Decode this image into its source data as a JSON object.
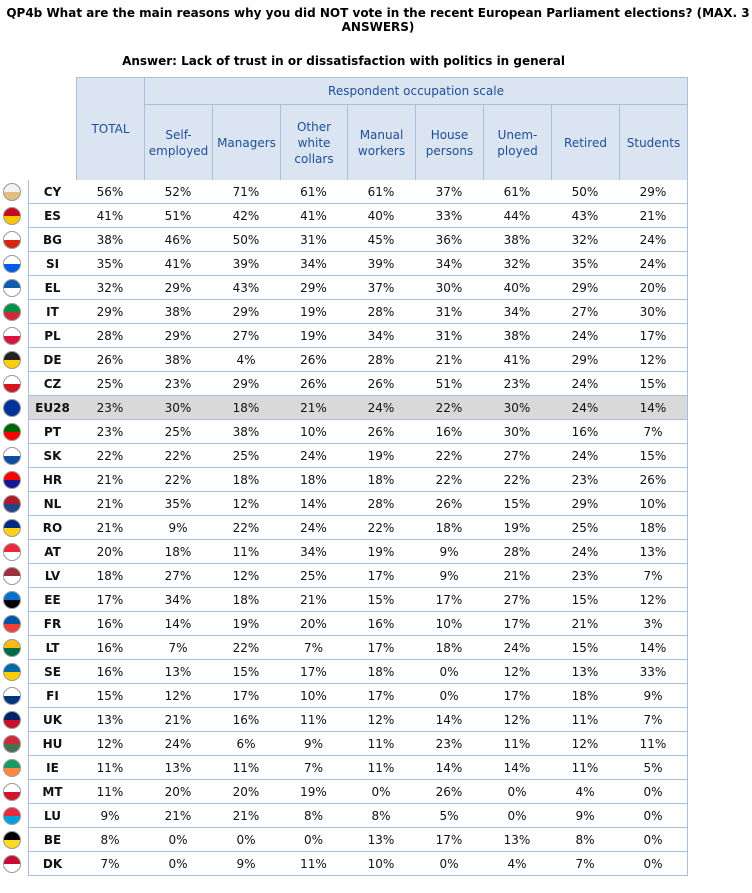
{
  "title": "QP4b What are the main reasons why you did NOT vote in the recent European Parliament elections? (MAX. 3 ANSWERS)",
  "subtitle": "Answer: Lack of trust in or dissatisfaction with politics in general",
  "group_header": "Respondent occupation scale",
  "columns": [
    "TOTAL",
    "Self-\nemployed",
    "Managers",
    "Other white\ncollars",
    "Manual\nworkers",
    "House\npersons",
    "Unem-\nployed",
    "Retired",
    "Students"
  ],
  "rows": [
    {
      "country": "CY",
      "values": [
        "56%",
        "52%",
        "71%",
        "61%",
        "61%",
        "37%",
        "61%",
        "50%",
        "29%"
      ]
    },
    {
      "country": "ES",
      "values": [
        "41%",
        "51%",
        "42%",
        "41%",
        "40%",
        "33%",
        "44%",
        "43%",
        "21%"
      ]
    },
    {
      "country": "BG",
      "values": [
        "38%",
        "46%",
        "50%",
        "31%",
        "45%",
        "36%",
        "38%",
        "32%",
        "24%"
      ]
    },
    {
      "country": "SI",
      "values": [
        "35%",
        "41%",
        "39%",
        "34%",
        "39%",
        "34%",
        "32%",
        "35%",
        "24%"
      ]
    },
    {
      "country": "EL",
      "values": [
        "32%",
        "29%",
        "43%",
        "29%",
        "37%",
        "30%",
        "40%",
        "29%",
        "20%"
      ]
    },
    {
      "country": "IT",
      "values": [
        "29%",
        "38%",
        "29%",
        "19%",
        "28%",
        "31%",
        "34%",
        "27%",
        "30%"
      ]
    },
    {
      "country": "PL",
      "values": [
        "28%",
        "29%",
        "27%",
        "19%",
        "34%",
        "31%",
        "38%",
        "24%",
        "17%"
      ]
    },
    {
      "country": "DE",
      "values": [
        "26%",
        "38%",
        "4%",
        "26%",
        "28%",
        "21%",
        "41%",
        "29%",
        "12%"
      ]
    },
    {
      "country": "CZ",
      "values": [
        "25%",
        "23%",
        "29%",
        "26%",
        "26%",
        "51%",
        "23%",
        "24%",
        "15%"
      ]
    },
    {
      "country": "EU28",
      "highlighted": true,
      "values": [
        "23%",
        "30%",
        "18%",
        "21%",
        "24%",
        "22%",
        "30%",
        "24%",
        "14%"
      ]
    },
    {
      "country": "PT",
      "values": [
        "23%",
        "25%",
        "38%",
        "10%",
        "26%",
        "16%",
        "30%",
        "16%",
        "7%"
      ]
    },
    {
      "country": "SK",
      "values": [
        "22%",
        "22%",
        "25%",
        "24%",
        "19%",
        "22%",
        "27%",
        "24%",
        "15%"
      ]
    },
    {
      "country": "HR",
      "values": [
        "21%",
        "22%",
        "18%",
        "18%",
        "18%",
        "22%",
        "22%",
        "23%",
        "26%"
      ]
    },
    {
      "country": "NL",
      "values": [
        "21%",
        "35%",
        "12%",
        "14%",
        "28%",
        "26%",
        "15%",
        "29%",
        "10%"
      ]
    },
    {
      "country": "RO",
      "values": [
        "21%",
        "9%",
        "22%",
        "24%",
        "22%",
        "18%",
        "19%",
        "25%",
        "18%"
      ]
    },
    {
      "country": "AT",
      "values": [
        "20%",
        "18%",
        "11%",
        "34%",
        "19%",
        "9%",
        "28%",
        "24%",
        "13%"
      ]
    },
    {
      "country": "LV",
      "values": [
        "18%",
        "27%",
        "12%",
        "25%",
        "17%",
        "9%",
        "21%",
        "23%",
        "7%"
      ]
    },
    {
      "country": "EE",
      "values": [
        "17%",
        "34%",
        "18%",
        "21%",
        "15%",
        "17%",
        "27%",
        "15%",
        "12%"
      ]
    },
    {
      "country": "FR",
      "values": [
        "16%",
        "14%",
        "19%",
        "20%",
        "16%",
        "10%",
        "17%",
        "21%",
        "3%"
      ]
    },
    {
      "country": "LT",
      "values": [
        "16%",
        "7%",
        "22%",
        "7%",
        "17%",
        "18%",
        "24%",
        "15%",
        "14%"
      ]
    },
    {
      "country": "SE",
      "values": [
        "16%",
        "13%",
        "15%",
        "17%",
        "18%",
        "0%",
        "12%",
        "13%",
        "33%"
      ]
    },
    {
      "country": "FI",
      "values": [
        "15%",
        "12%",
        "17%",
        "10%",
        "17%",
        "0%",
        "17%",
        "18%",
        "9%"
      ]
    },
    {
      "country": "UK",
      "values": [
        "13%",
        "21%",
        "16%",
        "11%",
        "12%",
        "14%",
        "12%",
        "11%",
        "7%"
      ]
    },
    {
      "country": "HU",
      "values": [
        "12%",
        "24%",
        "6%",
        "9%",
        "11%",
        "23%",
        "11%",
        "12%",
        "11%"
      ]
    },
    {
      "country": "IE",
      "values": [
        "11%",
        "13%",
        "11%",
        "7%",
        "11%",
        "14%",
        "14%",
        "11%",
        "5%"
      ]
    },
    {
      "country": "MT",
      "values": [
        "11%",
        "20%",
        "20%",
        "19%",
        "0%",
        "26%",
        "0%",
        "4%",
        "0%"
      ]
    },
    {
      "country": "LU",
      "values": [
        "9%",
        "21%",
        "21%",
        "8%",
        "8%",
        "5%",
        "0%",
        "9%",
        "0%"
      ]
    },
    {
      "country": "BE",
      "values": [
        "8%",
        "0%",
        "0%",
        "0%",
        "13%",
        "17%",
        "13%",
        "8%",
        "0%"
      ]
    },
    {
      "country": "DK",
      "values": [
        "7%",
        "0%",
        "9%",
        "11%",
        "10%",
        "0%",
        "4%",
        "7%",
        "0%"
      ]
    }
  ]
}
